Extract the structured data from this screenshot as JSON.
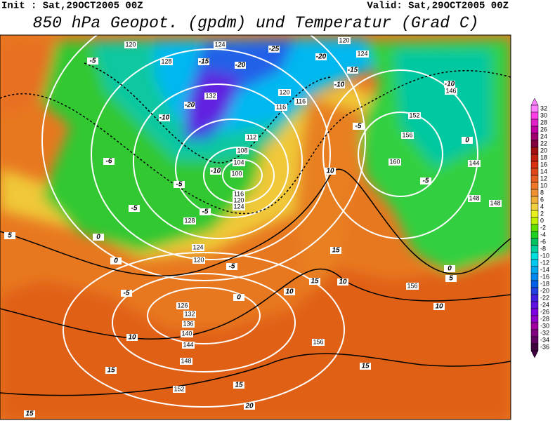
{
  "header": {
    "init": "Init : Sat,29OCT2005 00Z",
    "valid": "Valid: Sat,29OCT2005 00Z",
    "title": "850 hPa Geopot. (gpdm) und Temperatur (Grad C)"
  },
  "colorbar": {
    "ticks": [
      32,
      30,
      28,
      26,
      24,
      22,
      20,
      18,
      16,
      14,
      12,
      10,
      8,
      6,
      4,
      2,
      0,
      -2,
      -4,
      -6,
      -8,
      -10,
      -12,
      -14,
      -16,
      -18,
      -20,
      -22,
      -24,
      -26,
      -28,
      -30,
      -32,
      -34,
      -36
    ],
    "colors": [
      "#ff80ff",
      "#ff40e8",
      "#e020c8",
      "#c000a0",
      "#a00070",
      "#800040",
      "#a01010",
      "#c02010",
      "#d83010",
      "#e04818",
      "#e86020",
      "#f07828",
      "#f09030",
      "#f0b038",
      "#f0d040",
      "#e8f020",
      "#c0f000",
      "#60e000",
      "#20d020",
      "#00c060",
      "#00d0a0",
      "#00e0e0",
      "#00c8f0",
      "#00a8f0",
      "#0088f0",
      "#0060e8",
      "#2040e0",
      "#4020e0",
      "#6010e0",
      "#8000e0",
      "#9000c8",
      "#a000a0",
      "#800080",
      "#600060",
      "#400040"
    ]
  },
  "map": {
    "geopotential_labels": [
      "120",
      "124",
      "128",
      "132",
      "120",
      "116",
      "116",
      "112",
      "108",
      "104",
      "100",
      "116",
      "120",
      "124",
      "128",
      "124",
      "120",
      "126",
      "132",
      "136",
      "140",
      "144",
      "148",
      "152",
      "156",
      "156",
      "152",
      "156",
      "160",
      "146",
      "144",
      "148",
      "148",
      "120",
      "124"
    ],
    "temperature_labels": [
      "-5",
      "-10",
      "-20",
      "-15",
      "-20",
      "-25",
      "-20",
      "-15",
      "-10",
      "-10",
      "-5",
      "0",
      "-5",
      "-6",
      "-5",
      "-5",
      "-5",
      "0",
      "0",
      "-5",
      "-5",
      "0",
      "10",
      "15",
      "15",
      "5",
      "10",
      "10",
      "15",
      "15",
      "10",
      "5",
      "0",
      "15",
      "15",
      "20",
      "10",
      "-10"
    ]
  }
}
